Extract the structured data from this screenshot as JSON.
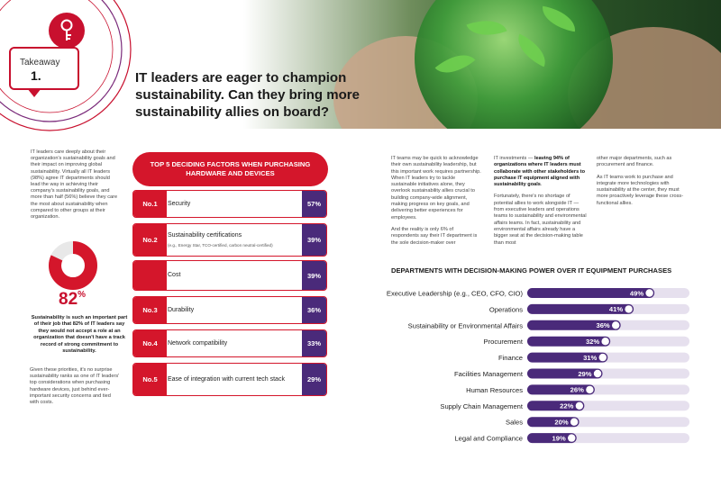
{
  "header": {
    "takeaway_label": "Takeaway",
    "takeaway_number": "1.",
    "headline": "IT leaders are eager to champion sustainability. Can they bring more sustainability allies on board?"
  },
  "left": {
    "intro": "IT leaders care deeply about their organization's sustainability goals and their impact on improving global sustainability. Virtually all IT leaders (98%) agree IT departments should lead the way in achieving their company's sustainability goals, and more than half (56%) believe they care the most about sustainability when compared to other groups at their organization.",
    "stat_value": 82,
    "stat_number": "82",
    "stat_unit": "%",
    "stat_text": "Sustainability is such an important part of their job that 82% of IT leaders say they would not accept a role at an organization that doesn't have a track record of strong commitment to sustainability.",
    "closing": "Given these priorities, it's no surprise sustainability ranks as one of IT leaders' top considerations when purchasing hardware devices, just behind ever-important security concerns and tied with costs."
  },
  "factors": {
    "title": "TOP 5 DECIDING FACTORS WHEN PURCHASING HARDWARE AND DEVICES",
    "items": [
      {
        "no": "No.1",
        "label": "Security",
        "sub": "",
        "pct": "57%"
      },
      {
        "no": "No.2",
        "label": "Sustainability certifications",
        "sub": "(e.g., Energy Star, TCO-certified, carbon neutral-certified)",
        "pct": "39%"
      },
      {
        "no": "",
        "label": "Cost",
        "sub": "",
        "pct": "39%"
      },
      {
        "no": "No.3",
        "label": "Durability",
        "sub": "",
        "pct": "36%"
      },
      {
        "no": "No.4",
        "label": "Network compatibility",
        "sub": "",
        "pct": "33%"
      },
      {
        "no": "No.5",
        "label": "Ease of integration with current tech stack",
        "sub": "",
        "pct": "29%"
      }
    ]
  },
  "right": {
    "col1_p1": "IT teams may be quick to acknowledge their own sustainability leadership, but this important work requires partnership. When IT leaders try to tackle sustainable initiatives alone, they overlook sustainability allies crucial to building company-wide alignment, making progress on key goals, and delivering better experiences for employees.",
    "col1_p2": "And the reality is only 6% of respondents say their IT department is the sole decision-maker over",
    "col2_p1_a": "IT investments — ",
    "col2_p1_b": "leaving 94% of organizations where IT leaders must collaborate with other stakeholders to purchase IT equipment aligned with sustainability goals",
    "col2_p1_c": ".",
    "col2_p2": "Fortunately, there's no shortage of potential allies to work alongside IT — from executive leaders and operations teams to sustainability and environmental affairs teams. In fact, sustainability and environmental affairs already have a bigger seat at the decision-making table than most",
    "col3_p1": "other major departments, such as procurement and finance.",
    "col3_p2": "As IT teams work to purchase and integrate more technologies with sustainability at the center, they must more proactively leverage these cross-functional allies."
  },
  "chart_data": {
    "type": "bar",
    "orientation": "horizontal",
    "title": "DEPARTMENTS WITH DECISION-MAKING POWER OVER IT EQUIPMENT PURCHASES",
    "categories": [
      "Executive Leadership (e.g., CEO, CFO, CIO)",
      "Operations",
      "Sustainability or Environmental Affairs",
      "Procurement",
      "Finance",
      "Facilities Management",
      "Human Resources",
      "Supply Chain Management",
      "Sales",
      "Legal and Compliance"
    ],
    "values": [
      49,
      41,
      36,
      32,
      31,
      29,
      26,
      22,
      20,
      19
    ],
    "unit": "%",
    "xlim": [
      0,
      100
    ],
    "bar_color": "#4a2a7a",
    "track_color": "#e6e0ee"
  },
  "colors": {
    "accent_red": "#d4162b",
    "accent_purple": "#4a2a7a"
  }
}
